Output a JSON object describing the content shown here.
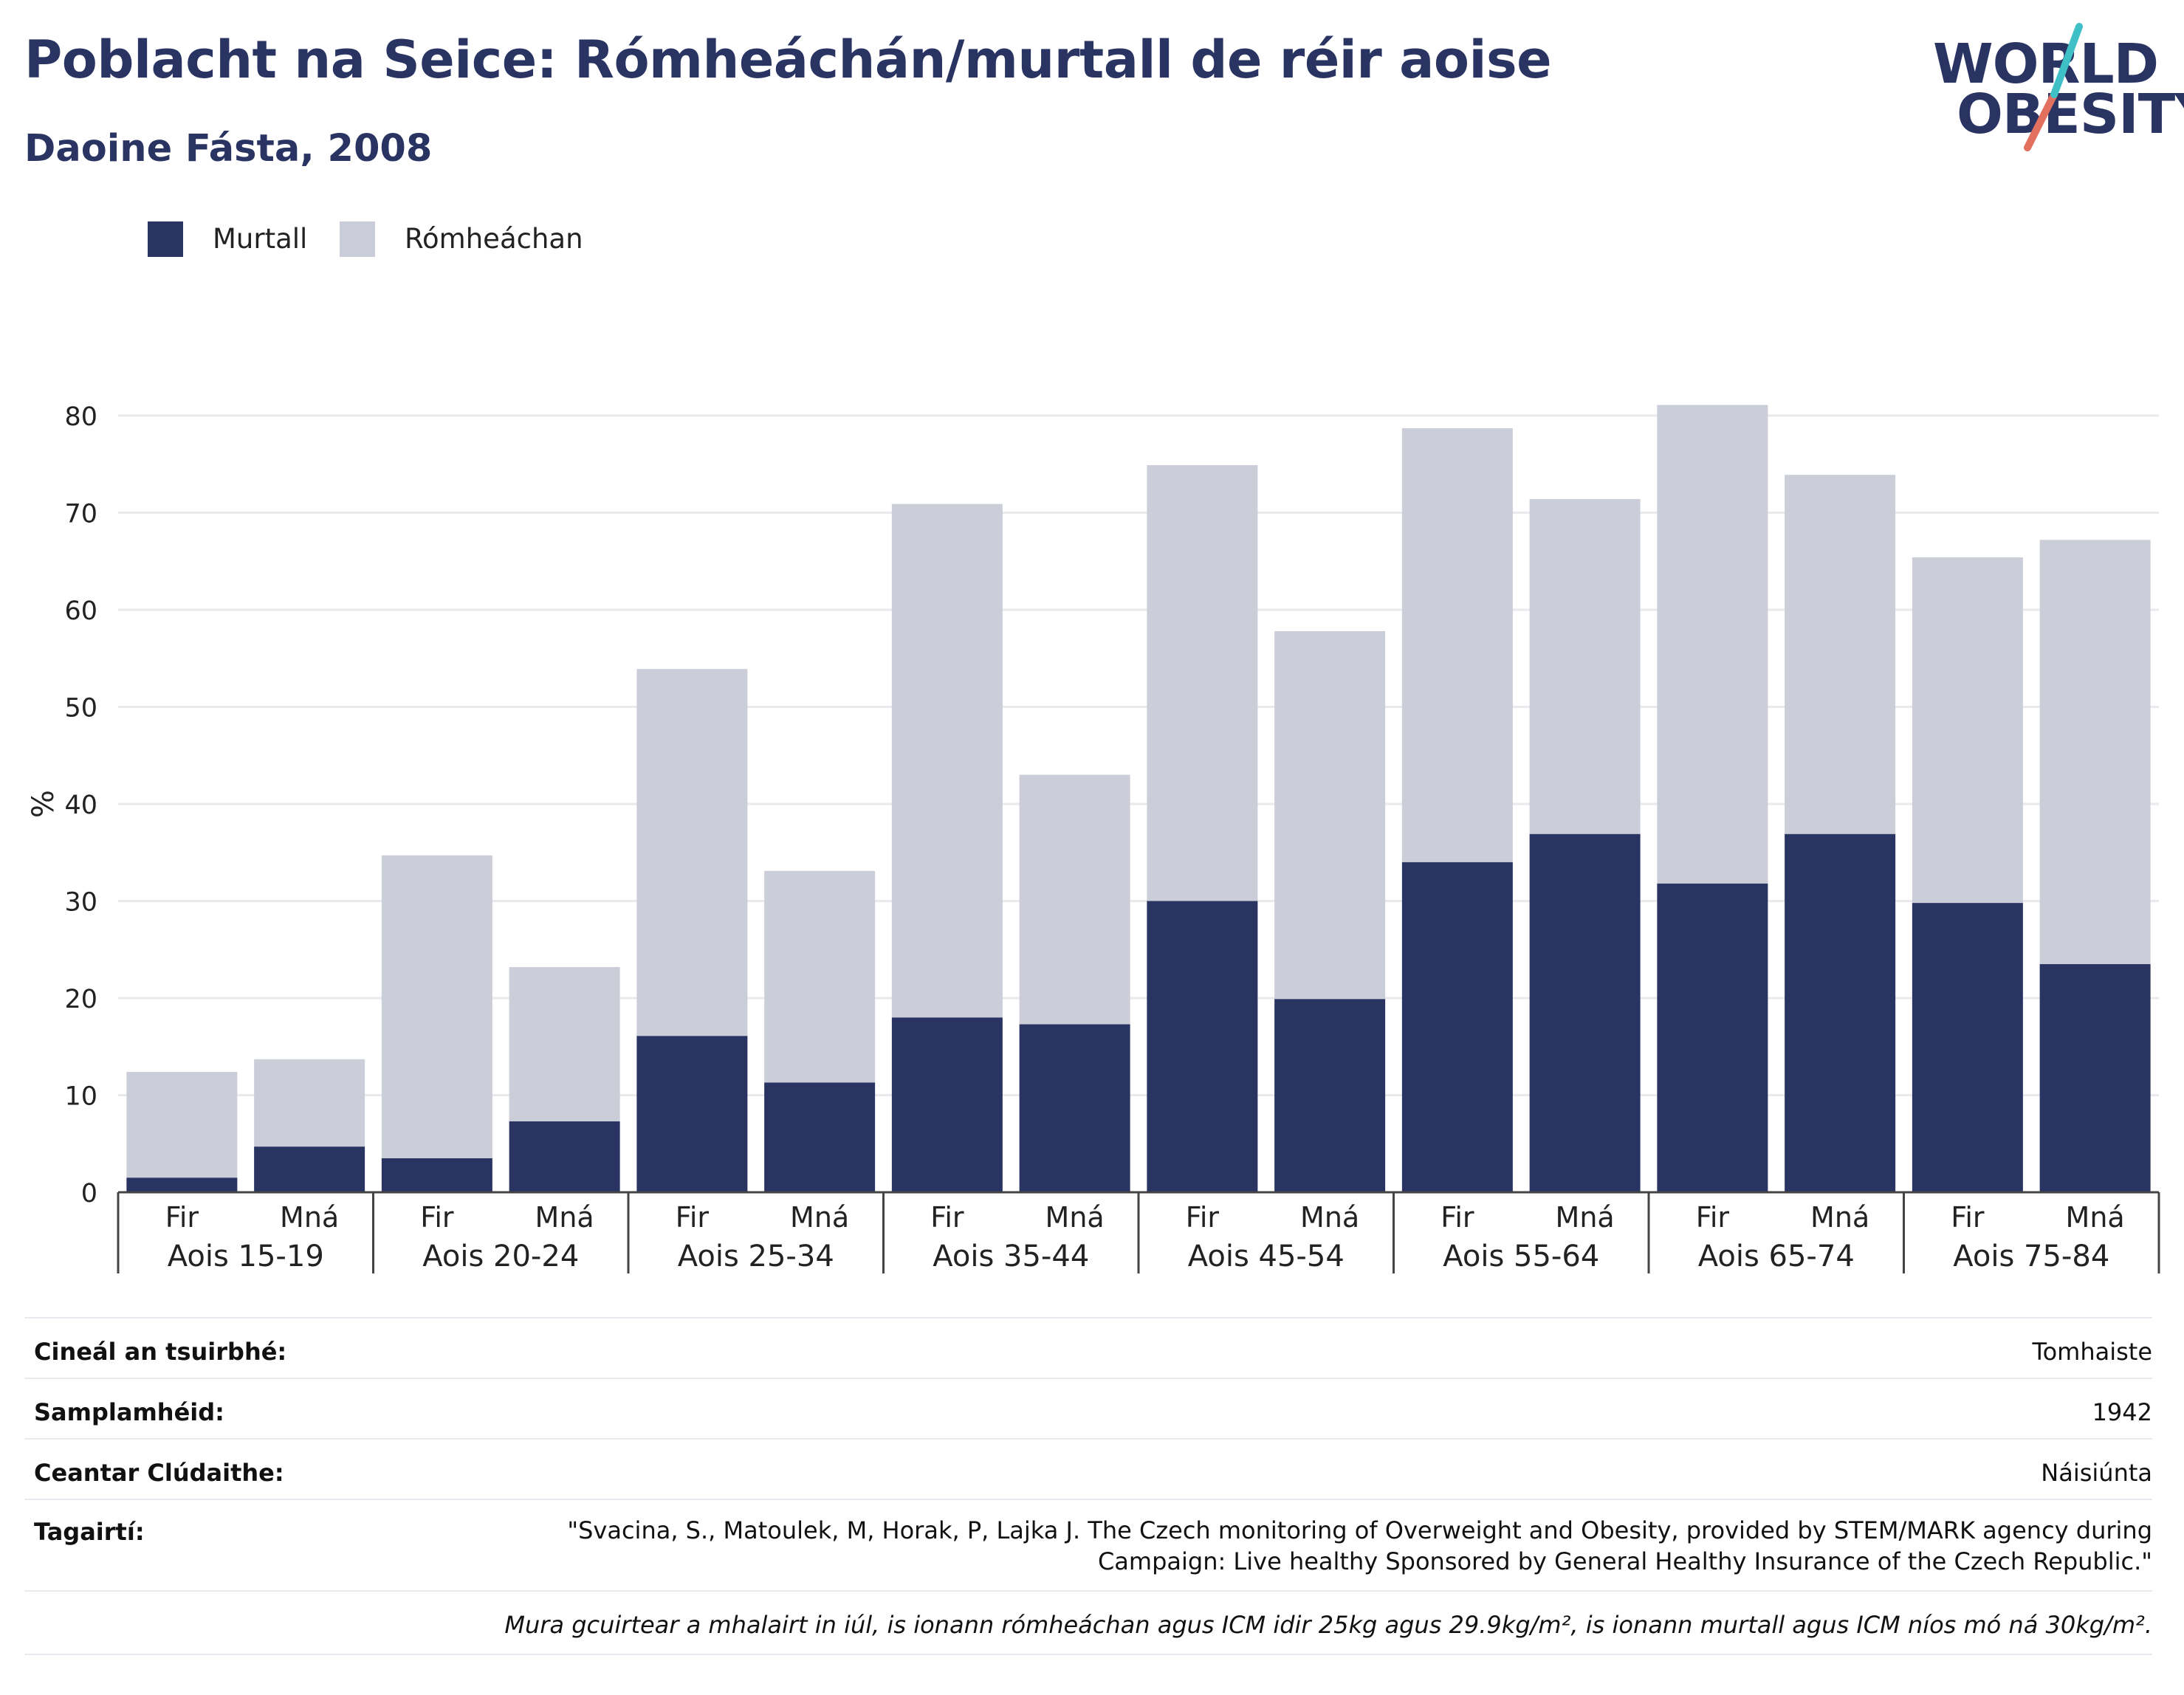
{
  "title": "Poblacht na Seice: Rómheáchán/murtall de réir aoise",
  "subtitle": "Daoine Fásta, 2008",
  "logo": {
    "line1": "WORLD",
    "line2": "OBESITY"
  },
  "colors": {
    "obesity": "#2a3462",
    "overweight": "#cbcdd8",
    "title": "#2a3462",
    "logo_slash_teal": "#3ec0c6",
    "logo_slash_coral": "#e2705f"
  },
  "legend": [
    {
      "label": "Murtall",
      "color": "#2a3462"
    },
    {
      "label": "Rómheáchan",
      "color": "#cbcdd8"
    }
  ],
  "chart_data": {
    "type": "bar",
    "stacked": true,
    "ylabel": "%",
    "ylim": [
      0,
      80
    ],
    "yticks": [
      0,
      10,
      20,
      30,
      40,
      50,
      60,
      70,
      80
    ],
    "grid": true,
    "legend_position": "top-left",
    "groups": [
      "Aois 15-19",
      "Aois 20-24",
      "Aois 25-34",
      "Aois 35-44",
      "Aois 45-54",
      "Aois 55-64",
      "Aois 65-74",
      "Aois 75-84"
    ],
    "subcategories": [
      "Fir",
      "Mná"
    ],
    "series": [
      {
        "name": "Murtall",
        "values": [
          1.5,
          4.7,
          3.5,
          7.3,
          16.1,
          11.3,
          18.0,
          17.3,
          30.0,
          19.9,
          34.0,
          36.9,
          31.8,
          36.9,
          29.8,
          23.5
        ]
      },
      {
        "name": "Rómheáchan",
        "values": [
          10.9,
          9.0,
          31.2,
          15.9,
          37.8,
          21.8,
          52.9,
          25.7,
          44.9,
          37.9,
          44.7,
          34.5,
          49.3,
          37.0,
          35.6,
          43.7
        ]
      }
    ]
  },
  "meta": {
    "survey_type_label": "Cineál an tsuirbhé:",
    "survey_type_value": "Tomhaiste",
    "sample_size_label": "Samplamhéid:",
    "sample_size_value": "1942",
    "area_label": "Ceantar Clúdaithe:",
    "area_value": "Náisiúnta",
    "references_label": "Tagairtí:",
    "references_value": "\"Svacina, S., Matoulek, M, Horak, P, Lajka J. The Czech monitoring of Overweight and Obesity, provided by STEM/MARK agency during Campaign: Live healthy Sponsored by General Healthy Insurance of the Czech Republic.\"",
    "footnote": "Mura gcuirtear a mhalairt in iúl, is ionann rómheáchan agus ICM idir 25kg agus 29.9kg/m², is ionann murtall agus ICM níos mó ná 30kg/m²."
  }
}
